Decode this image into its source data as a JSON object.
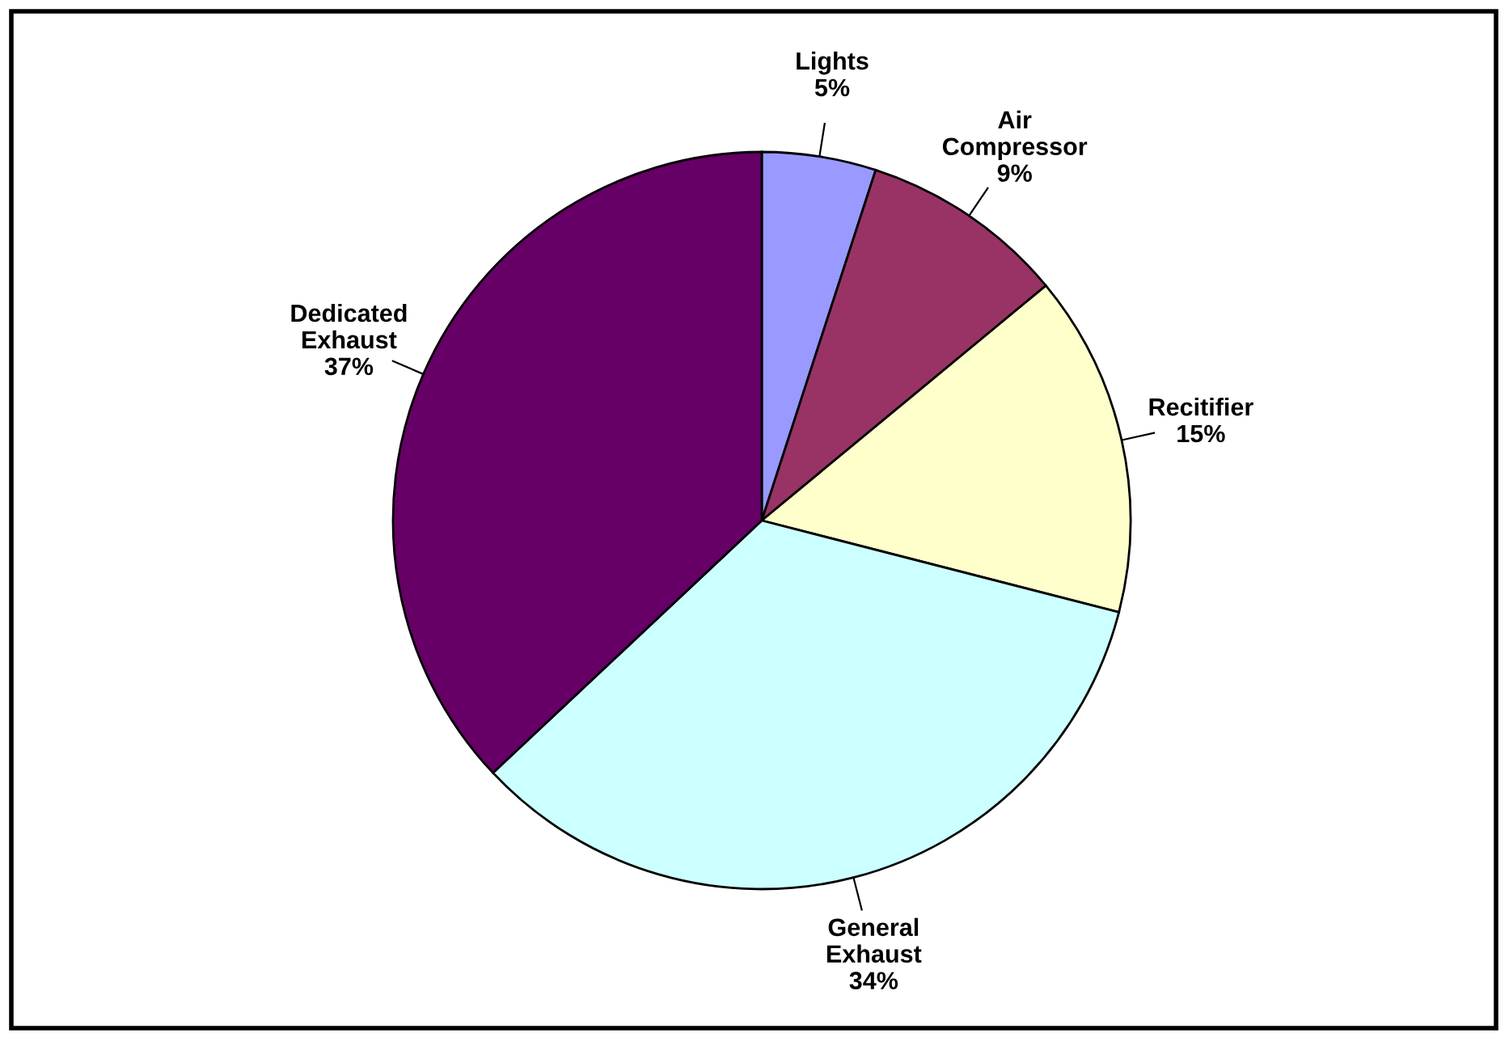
{
  "chart_data": {
    "type": "pie",
    "categories": [
      "Lights",
      "Air Compressor",
      "Recitifier",
      "General Exhaust",
      "Dedicated Exhaust"
    ],
    "values": [
      5,
      9,
      15,
      34,
      37
    ],
    "value_labels": [
      "5%",
      "9%",
      "15%",
      "34%",
      "37%"
    ],
    "colors": [
      "#9999ff",
      "#993366",
      "#ffffcc",
      "#ccffff",
      "#660066"
    ],
    "legend": false
  }
}
